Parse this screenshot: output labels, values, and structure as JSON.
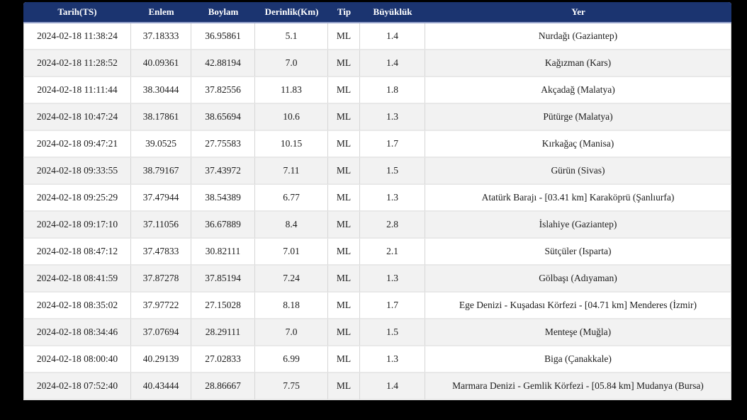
{
  "colors": {
    "canvas_bg": "#000000",
    "header_bg": "#1b3470",
    "header_text": "#ffffff",
    "header_border": "#97a4cc",
    "row_bg": "#ffffff",
    "row_alt_bg": "#f2f2f2",
    "row_border": "#e8e8e8",
    "col_border": "#d6d6d6",
    "body_text": "#1c1c1c"
  },
  "table": {
    "columns": [
      {
        "key": "tarih",
        "label": "Tarih(TS)"
      },
      {
        "key": "enlem",
        "label": "Enlem"
      },
      {
        "key": "boylam",
        "label": "Boylam"
      },
      {
        "key": "derinlik",
        "label": "Derinlik(Km)"
      },
      {
        "key": "tip",
        "label": "Tip"
      },
      {
        "key": "buyukluk",
        "label": "Büyüklük"
      },
      {
        "key": "yer",
        "label": "Yer"
      }
    ],
    "rows": [
      [
        "2024-02-18 11:38:24",
        "37.18333",
        "36.95861",
        "5.1",
        "ML",
        "1.4",
        "Nurdağı (Gaziantep)"
      ],
      [
        "2024-02-18 11:28:52",
        "40.09361",
        "42.88194",
        "7.0",
        "ML",
        "1.4",
        "Kağızman (Kars)"
      ],
      [
        "2024-02-18 11:11:44",
        "38.30444",
        "37.82556",
        "11.83",
        "ML",
        "1.8",
        "Akçadağ (Malatya)"
      ],
      [
        "2024-02-18 10:47:24",
        "38.17861",
        "38.65694",
        "10.6",
        "ML",
        "1.3",
        "Pütürge (Malatya)"
      ],
      [
        "2024-02-18 09:47:21",
        "39.0525",
        "27.75583",
        "10.15",
        "ML",
        "1.7",
        "Kırkağaç (Manisa)"
      ],
      [
        "2024-02-18 09:33:55",
        "38.79167",
        "37.43972",
        "7.11",
        "ML",
        "1.5",
        "Gürün (Sivas)"
      ],
      [
        "2024-02-18 09:25:29",
        "37.47944",
        "38.54389",
        "6.77",
        "ML",
        "1.3",
        "Atatürk Barajı - [03.41 km] Karaköprü (Şanlıurfa)"
      ],
      [
        "2024-02-18 09:17:10",
        "37.11056",
        "36.67889",
        "8.4",
        "ML",
        "2.8",
        "İslahiye (Gaziantep)"
      ],
      [
        "2024-02-18 08:47:12",
        "37.47833",
        "30.82111",
        "7.01",
        "ML",
        "2.1",
        "Sütçüler (Isparta)"
      ],
      [
        "2024-02-18 08:41:59",
        "37.87278",
        "37.85194",
        "7.24",
        "ML",
        "1.3",
        "Gölbaşı (Adıyaman)"
      ],
      [
        "2024-02-18 08:35:02",
        "37.97722",
        "27.15028",
        "8.18",
        "ML",
        "1.7",
        "Ege Denizi - Kuşadası Körfezi - [04.71 km] Menderes (İzmir)"
      ],
      [
        "2024-02-18 08:34:46",
        "37.07694",
        "28.29111",
        "7.0",
        "ML",
        "1.5",
        "Menteşe (Muğla)"
      ],
      [
        "2024-02-18 08:00:40",
        "40.29139",
        "27.02833",
        "6.99",
        "ML",
        "1.3",
        "Biga (Çanakkale)"
      ],
      [
        "2024-02-18 07:52:40",
        "40.43444",
        "28.86667",
        "7.75",
        "ML",
        "1.4",
        "Marmara Denizi - Gemlik Körfezi - [05.84 km] Mudanya (Bursa)"
      ]
    ]
  }
}
